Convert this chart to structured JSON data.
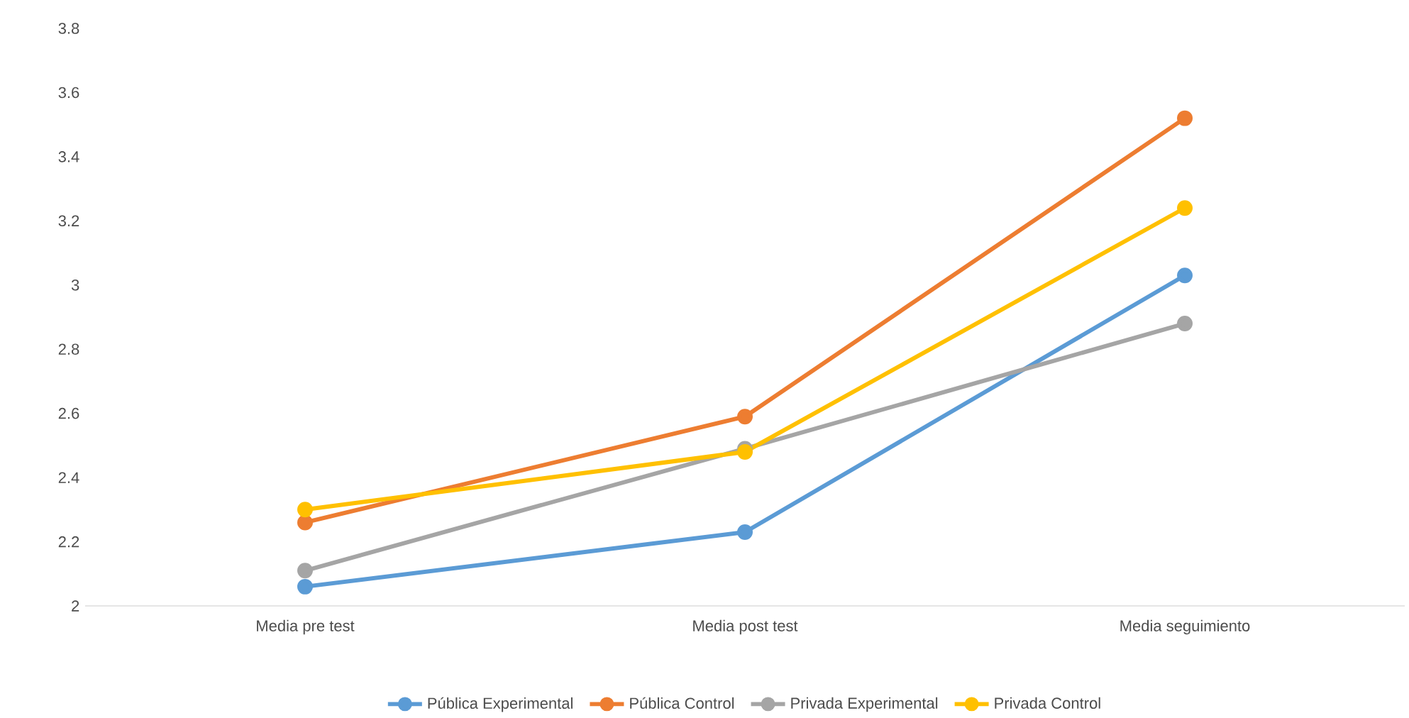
{
  "chart_data": {
    "type": "line",
    "categories": [
      "Media pre test",
      "Media post test",
      "Media seguimiento"
    ],
    "series": [
      {
        "name": "Pública Experimental",
        "color": "#5b9bd5",
        "values": [
          2.06,
          2.23,
          3.03
        ]
      },
      {
        "name": "Pública Control",
        "color": "#ed7d31",
        "values": [
          2.26,
          2.59,
          3.52
        ]
      },
      {
        "name": "Privada Experimental",
        "color": "#a5a5a5",
        "values": [
          2.11,
          2.49,
          2.88
        ]
      },
      {
        "name": "Privada Control",
        "color": "#ffc000",
        "values": [
          2.3,
          2.48,
          3.24
        ]
      }
    ],
    "ylim": [
      2,
      3.8
    ],
    "yticks": [
      2,
      2.2,
      2.4,
      2.6,
      2.8,
      3,
      3.2,
      3.4,
      3.6,
      3.8
    ],
    "grid": false,
    "legend": "bottom",
    "marker": "circle",
    "line_style": "solid"
  }
}
